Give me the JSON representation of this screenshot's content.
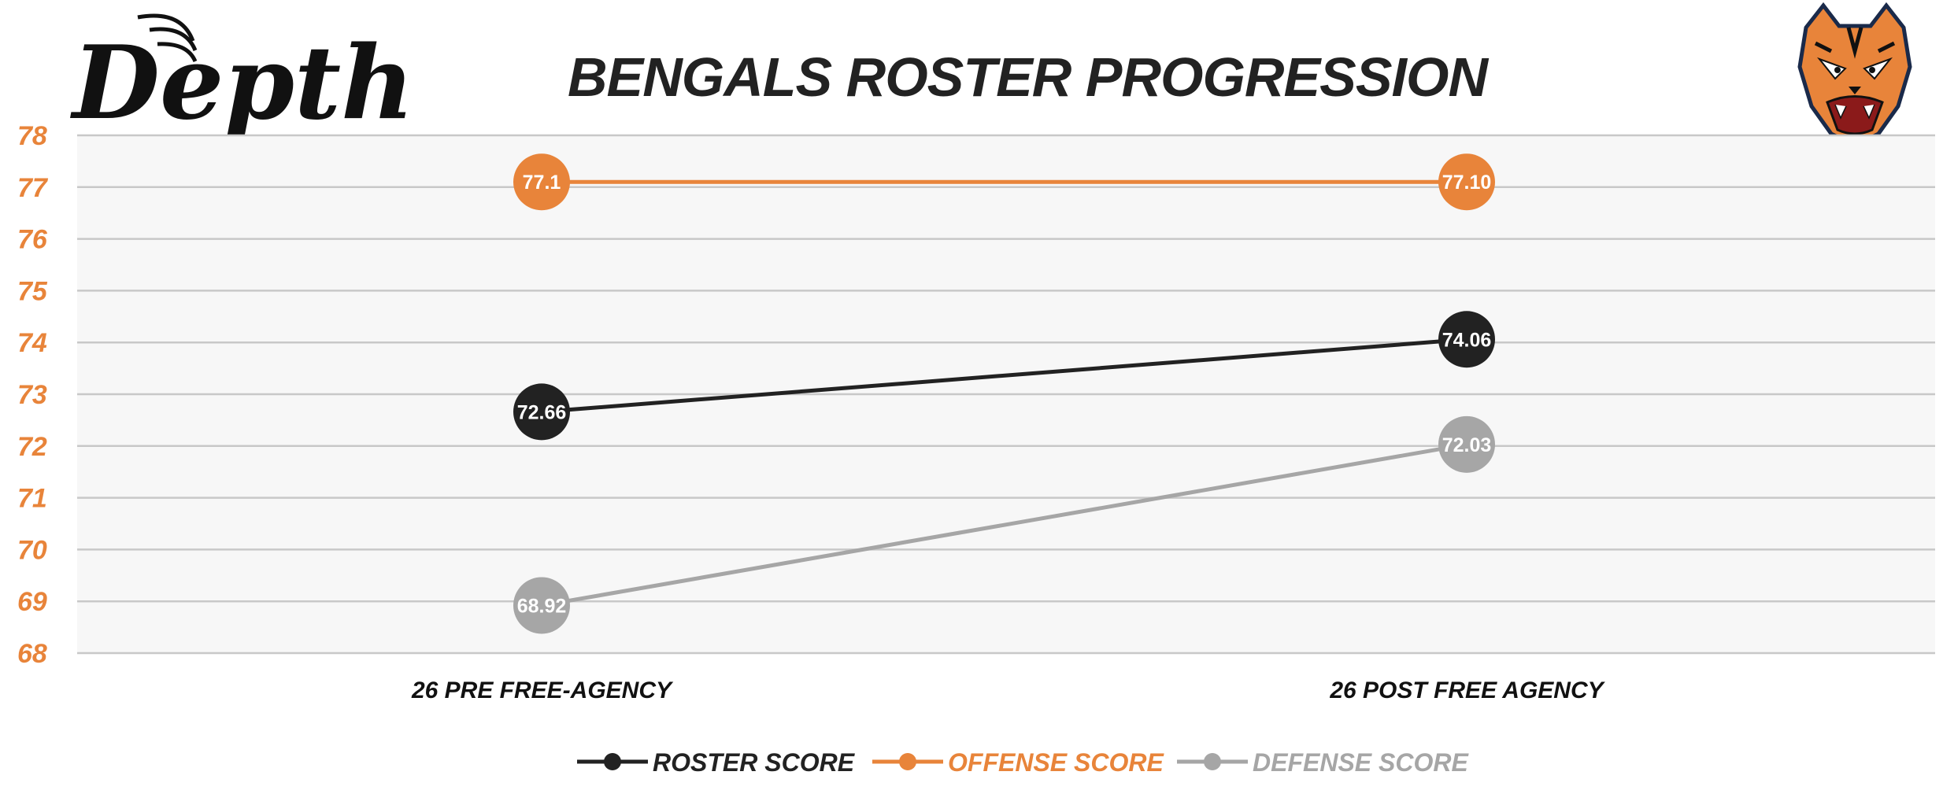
{
  "brand": {
    "logo_text": "Depth",
    "team_logo_icon": "tiger-head-icon"
  },
  "chart_data": {
    "type": "line",
    "title": "BENGALS ROSTER PROGRESSION",
    "categories": [
      "26 PRE FREE-AGENCY",
      "26 POST FREE AGENCY"
    ],
    "ylim": [
      68,
      78
    ],
    "yticks": [
      "78",
      "77",
      "76",
      "75",
      "74",
      "73",
      "72",
      "71",
      "70",
      "69",
      "68"
    ],
    "grid": true,
    "legend_position": "bottom",
    "series": [
      {
        "name": "ROSTER SCORE",
        "color": "#222222",
        "values": [
          72.66,
          74.06
        ],
        "labels": [
          "72.66",
          "74.06"
        ]
      },
      {
        "name": "OFFENSE SCORE",
        "color": "#e8843a",
        "values": [
          77.1,
          77.1
        ],
        "labels": [
          "77.1",
          "77.10"
        ]
      },
      {
        "name": "DEFENSE SCORE",
        "color": "#a6a6a6",
        "values": [
          68.92,
          72.03
        ],
        "labels": [
          "68.92",
          "72.03"
        ]
      }
    ]
  }
}
